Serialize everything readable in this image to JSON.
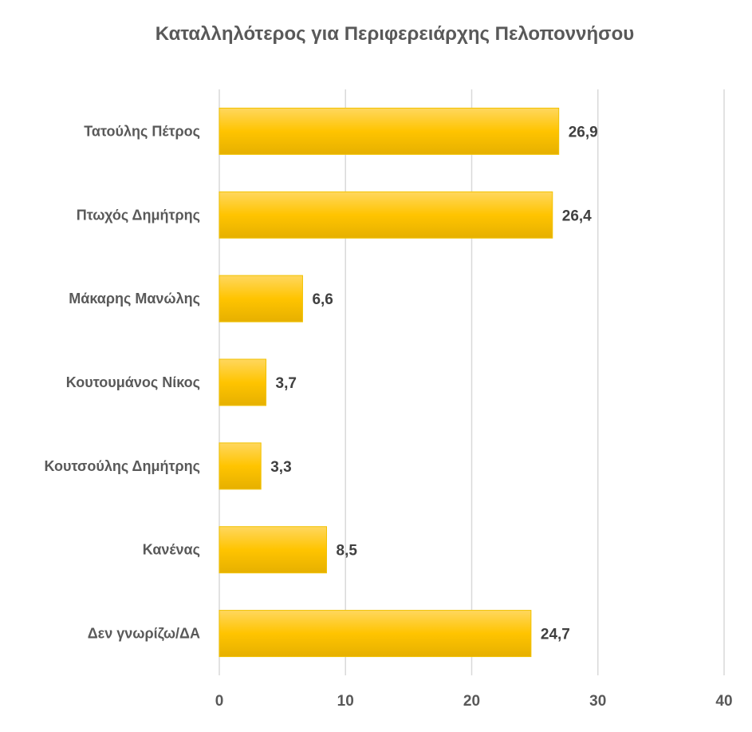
{
  "chart_data": {
    "type": "bar",
    "orientation": "horizontal",
    "title": "Καταλληλότερος για Περιφερειάρχης Πελοποννήσου",
    "categories": [
      "Τατούλης Πέτρος",
      "Πτωχός Δημήτρης",
      "Μάκαρης Μανώλης",
      "Κουτουμάνος Νίκος",
      "Κουτσούλης Δημήτρης",
      "Κανένας",
      "Δεν γνωρίζω/ΔΑ"
    ],
    "values": [
      26.9,
      26.4,
      6.6,
      3.7,
      3.3,
      8.5,
      24.7
    ],
    "value_labels": [
      "26,9",
      "26,4",
      "6,6",
      "3,7",
      "3,3",
      "8,5",
      "24,7"
    ],
    "xlim": [
      0,
      40
    ],
    "xticks": [
      0,
      10,
      20,
      30,
      40
    ],
    "grid": true,
    "legend": "none",
    "bar_color": "#ffc000"
  }
}
